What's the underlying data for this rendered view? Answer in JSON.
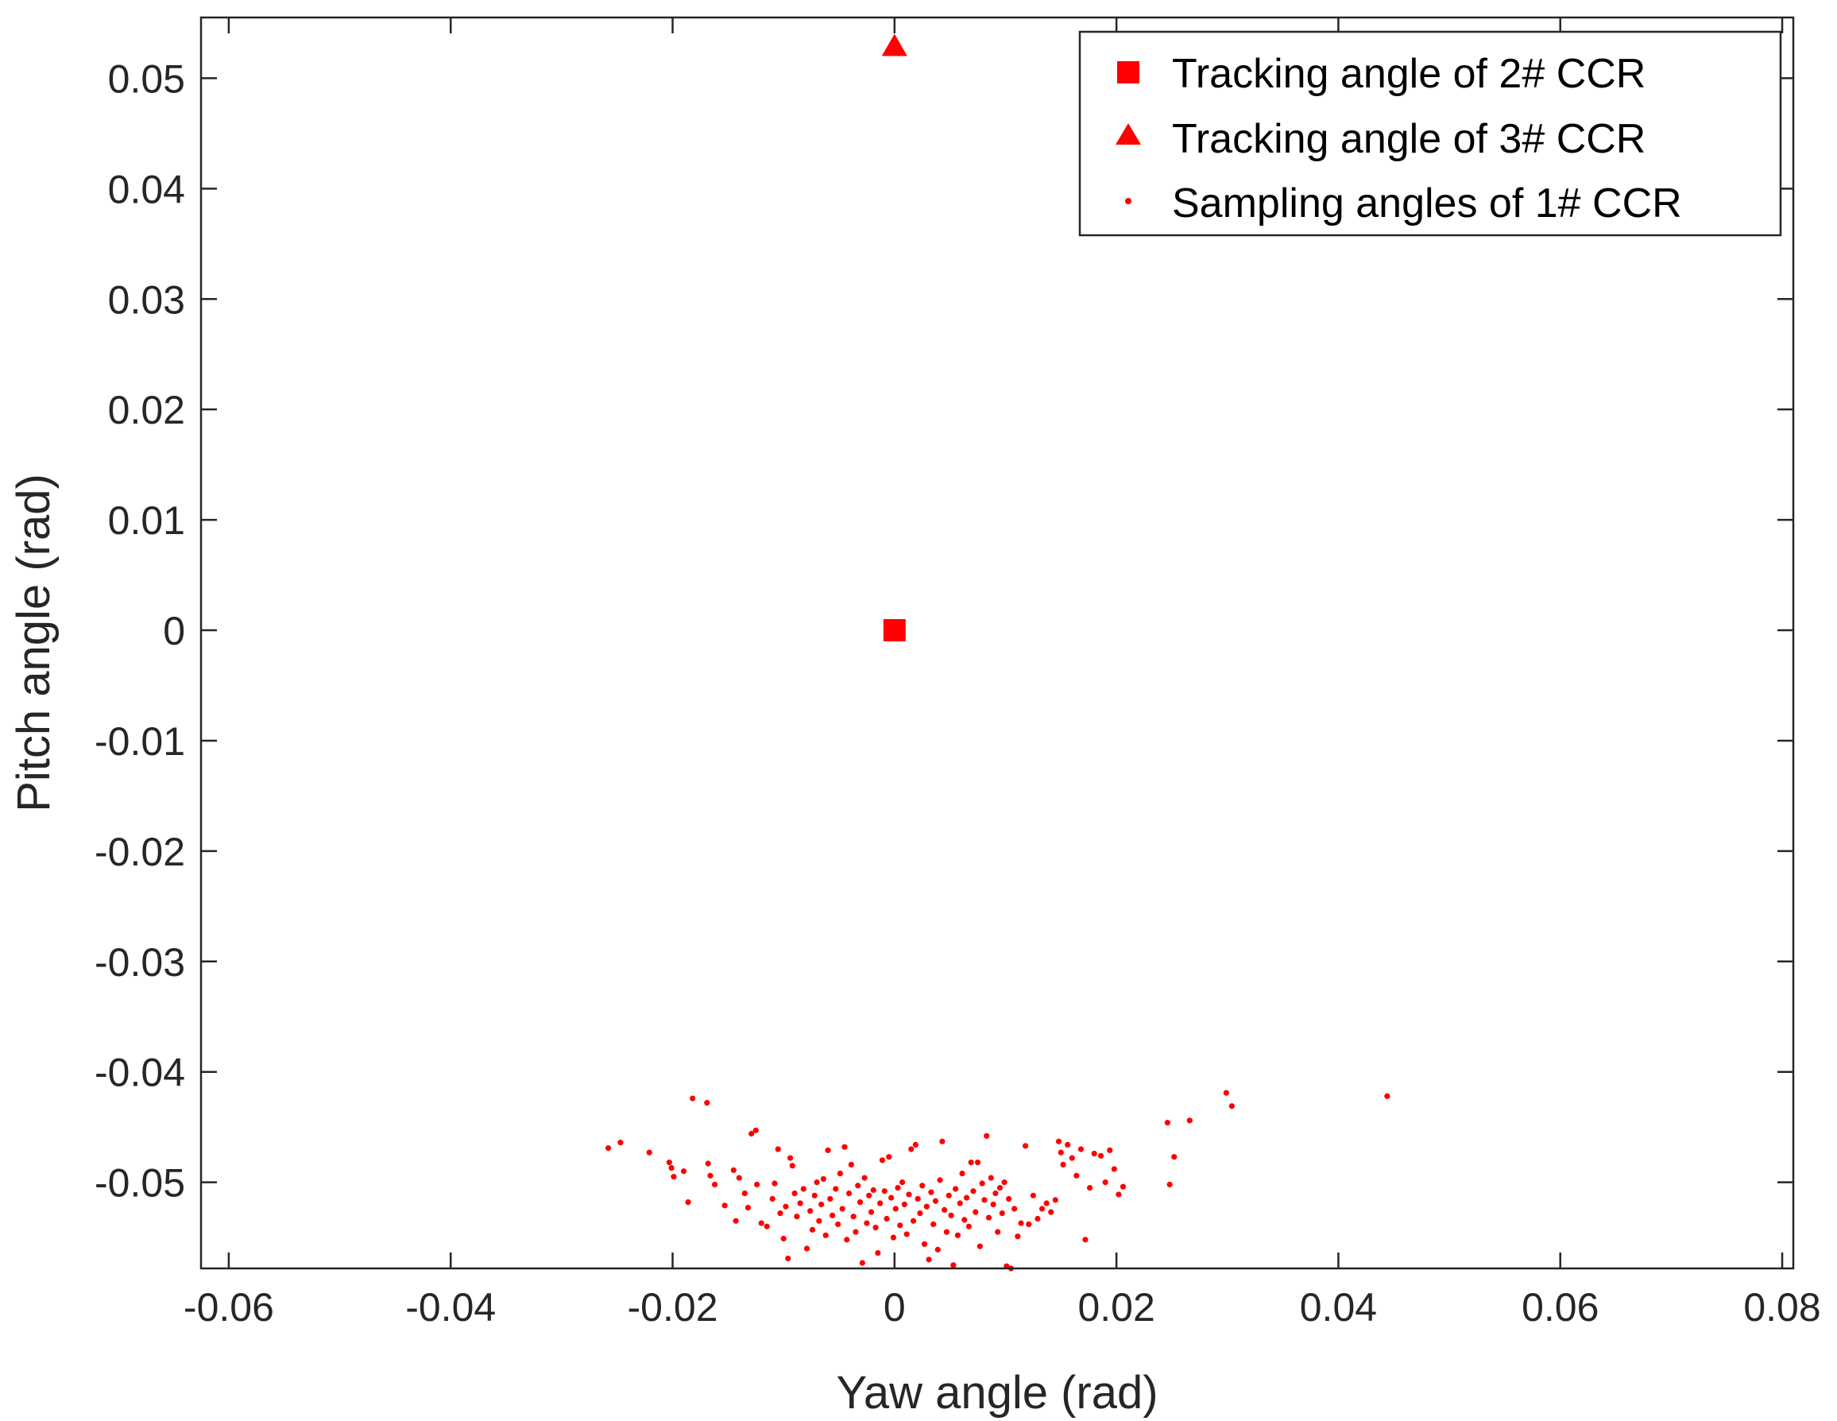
{
  "chart_data": {
    "type": "scatter",
    "xlabel": "Yaw angle (rad)",
    "ylabel": "Pitch angle (rad)",
    "xlim": [
      -0.0625,
      0.081
    ],
    "ylim": [
      -0.0578,
      0.0555
    ],
    "xticks": [
      -0.06,
      -0.04,
      -0.02,
      0,
      0.02,
      0.04,
      0.06,
      0.08
    ],
    "xtick_labels": [
      "-0.06",
      "-0.04",
      "-0.02",
      "0",
      "0.02",
      "0.04",
      "0.06",
      "0.08"
    ],
    "yticks": [
      -0.05,
      -0.04,
      -0.03,
      -0.02,
      -0.01,
      0,
      0.01,
      0.02,
      0.03,
      0.04,
      0.05
    ],
    "ytick_labels": [
      "-0.05",
      "-0.04",
      "-0.03",
      "-0.02",
      "-0.01",
      "0",
      "0.01",
      "0.02",
      "0.03",
      "0.04",
      "0.05"
    ],
    "grid": false,
    "legend_position": "top-right",
    "color": "#ff0000",
    "series": [
      {
        "name": "Tracking angle of 2# CCR",
        "marker": "square",
        "points": [
          [
            0,
            0
          ]
        ]
      },
      {
        "name": "Tracking angle of 3# CCR",
        "marker": "triangle",
        "points": [
          [
            0,
            0.0528
          ]
        ]
      },
      {
        "name": "Sampling angles of 1# CCR",
        "marker": "dot",
        "points": [
          [
            -0.0258,
            -0.0469
          ],
          [
            -0.0247,
            -0.0464
          ],
          [
            -0.0221,
            -0.0473
          ],
          [
            -0.0203,
            -0.0482
          ],
          [
            -0.0201,
            -0.0487
          ],
          [
            -0.0199,
            -0.0495
          ],
          [
            -0.019,
            -0.049
          ],
          [
            -0.0186,
            -0.0518
          ],
          [
            -0.0182,
            -0.0424
          ],
          [
            -0.0169,
            -0.0428
          ],
          [
            -0.0168,
            -0.0483
          ],
          [
            -0.0166,
            -0.0494
          ],
          [
            -0.0162,
            -0.0502
          ],
          [
            -0.0153,
            -0.0521
          ],
          [
            -0.0145,
            -0.0489
          ],
          [
            -0.0143,
            -0.0535
          ],
          [
            -0.014,
            -0.0496
          ],
          [
            -0.0135,
            -0.051
          ],
          [
            -0.0132,
            -0.0523
          ],
          [
            -0.0129,
            -0.0456
          ],
          [
            -0.0125,
            -0.0453
          ],
          [
            -0.0124,
            -0.0502
          ],
          [
            -0.012,
            -0.0537
          ],
          [
            -0.0115,
            -0.054
          ],
          [
            -0.011,
            -0.0515
          ],
          [
            -0.0108,
            -0.0501
          ],
          [
            -0.0105,
            -0.047
          ],
          [
            -0.0103,
            -0.0528
          ],
          [
            -0.01,
            -0.0551
          ],
          [
            -0.0098,
            -0.0522
          ],
          [
            -0.0096,
            -0.0569
          ],
          [
            -0.0094,
            -0.0478
          ],
          [
            -0.0092,
            -0.0485
          ],
          [
            -0.009,
            -0.051
          ],
          [
            -0.0088,
            -0.0531
          ],
          [
            -0.0085,
            -0.0519
          ],
          [
            -0.0082,
            -0.0506
          ],
          [
            -0.0079,
            -0.056
          ],
          [
            -0.0076,
            -0.0526
          ],
          [
            -0.0074,
            -0.0543
          ],
          [
            -0.0072,
            -0.0512
          ],
          [
            -0.007,
            -0.05
          ],
          [
            -0.0068,
            -0.0535
          ],
          [
            -0.0066,
            -0.052
          ],
          [
            -0.0064,
            -0.0497
          ],
          [
            -0.0062,
            -0.0548
          ],
          [
            -0.006,
            -0.0471
          ],
          [
            -0.0058,
            -0.0515
          ],
          [
            -0.0056,
            -0.053
          ],
          [
            -0.0053,
            -0.0506
          ],
          [
            -0.0051,
            -0.0538
          ],
          [
            -0.0049,
            -0.0492
          ],
          [
            -0.0047,
            -0.0524
          ],
          [
            -0.0045,
            -0.0468
          ],
          [
            -0.0043,
            -0.0552
          ],
          [
            -0.0041,
            -0.051
          ],
          [
            -0.0039,
            -0.0484
          ],
          [
            -0.0037,
            -0.0531
          ],
          [
            -0.0035,
            -0.0545
          ],
          [
            -0.0033,
            -0.0503
          ],
          [
            -0.0031,
            -0.0518
          ],
          [
            -0.0029,
            -0.0573
          ],
          [
            -0.0027,
            -0.0496
          ],
          [
            -0.0025,
            -0.0537
          ],
          [
            -0.0023,
            -0.0512
          ],
          [
            -0.0021,
            -0.0527
          ],
          [
            -0.0019,
            -0.0507
          ],
          [
            -0.0017,
            -0.0541
          ],
          [
            -0.0015,
            -0.0564
          ],
          [
            -0.0013,
            -0.0519
          ],
          [
            -0.0011,
            -0.048
          ],
          [
            -0.0009,
            -0.0508
          ],
          [
            -0.0007,
            -0.0533
          ],
          [
            -0.0005,
            -0.0477
          ],
          [
            -0.0003,
            -0.0514
          ],
          [
            -0.0001,
            -0.055
          ],
          [
            0.0001,
            -0.0524
          ],
          [
            0.0003,
            -0.0505
          ],
          [
            0.0005,
            -0.0539
          ],
          [
            0.0007,
            -0.05
          ],
          [
            0.0009,
            -0.052
          ],
          [
            0.0011,
            -0.0547
          ],
          [
            0.0013,
            -0.0511
          ],
          [
            0.0015,
            -0.047
          ],
          [
            0.0017,
            -0.0535
          ],
          [
            0.0019,
            -0.0466
          ],
          [
            0.0021,
            -0.0515
          ],
          [
            0.0023,
            -0.0528
          ],
          [
            0.0025,
            -0.0503
          ],
          [
            0.0027,
            -0.0556
          ],
          [
            0.0029,
            -0.0522
          ],
          [
            0.0031,
            -0.057
          ],
          [
            0.0033,
            -0.0509
          ],
          [
            0.0035,
            -0.0538
          ],
          [
            0.0037,
            -0.0517
          ],
          [
            0.0039,
            -0.0561
          ],
          [
            0.0041,
            -0.0498
          ],
          [
            0.0043,
            -0.0463
          ],
          [
            0.0045,
            -0.0525
          ],
          [
            0.0047,
            -0.0545
          ],
          [
            0.0049,
            -0.0512
          ],
          [
            0.0051,
            -0.053
          ],
          [
            0.0053,
            -0.0575
          ],
          [
            0.0055,
            -0.0506
          ],
          [
            0.0057,
            -0.0548
          ],
          [
            0.0059,
            -0.0519
          ],
          [
            0.0061,
            -0.0492
          ],
          [
            0.0063,
            -0.0534
          ],
          [
            0.0065,
            -0.0514
          ],
          [
            0.0067,
            -0.054
          ],
          [
            0.0069,
            -0.0482
          ],
          [
            0.0071,
            -0.0508
          ],
          [
            0.0073,
            -0.0527
          ],
          [
            0.0075,
            -0.0482
          ],
          [
            0.0077,
            -0.0558
          ],
          [
            0.0079,
            -0.0501
          ],
          [
            0.0081,
            -0.0516
          ],
          [
            0.0083,
            -0.0458
          ],
          [
            0.0085,
            -0.0532
          ],
          [
            0.0087,
            -0.0496
          ],
          [
            0.0089,
            -0.052
          ],
          [
            0.0091,
            -0.051
          ],
          [
            0.0093,
            -0.0545
          ],
          [
            0.0095,
            -0.0505
          ],
          [
            0.0097,
            -0.0528
          ],
          [
            0.0099,
            -0.05
          ],
          [
            0.0101,
            -0.0576
          ],
          [
            0.0103,
            -0.0515
          ],
          [
            0.0105,
            -0.0578
          ],
          [
            0.0108,
            -0.0524
          ],
          [
            0.0111,
            -0.0549
          ],
          [
            0.0114,
            -0.0537
          ],
          [
            0.0118,
            -0.0467
          ],
          [
            0.0121,
            -0.0538
          ],
          [
            0.0125,
            -0.0512
          ],
          [
            0.0129,
            -0.0533
          ],
          [
            0.0133,
            -0.0524
          ],
          [
            0.0137,
            -0.0519
          ],
          [
            0.0141,
            -0.0527
          ],
          [
            0.0145,
            -0.0516
          ],
          [
            0.0148,
            -0.0463
          ],
          [
            0.015,
            -0.0473
          ],
          [
            0.0152,
            -0.0484
          ],
          [
            0.0156,
            -0.0466
          ],
          [
            0.016,
            -0.0478
          ],
          [
            0.0164,
            -0.0494
          ],
          [
            0.0168,
            -0.047
          ],
          [
            0.0172,
            -0.0552
          ],
          [
            0.0176,
            -0.0505
          ],
          [
            0.018,
            -0.0474
          ],
          [
            0.0186,
            -0.0476
          ],
          [
            0.019,
            -0.05
          ],
          [
            0.0194,
            -0.0471
          ],
          [
            0.0198,
            -0.0488
          ],
          [
            0.0202,
            -0.0511
          ],
          [
            0.0206,
            -0.0504
          ],
          [
            0.0246,
            -0.0446
          ],
          [
            0.0248,
            -0.0502
          ],
          [
            0.0252,
            -0.0477
          ],
          [
            0.0266,
            -0.0444
          ],
          [
            0.0299,
            -0.0419
          ],
          [
            0.0304,
            -0.0431
          ],
          [
            0.0444,
            -0.0422
          ]
        ]
      }
    ]
  }
}
